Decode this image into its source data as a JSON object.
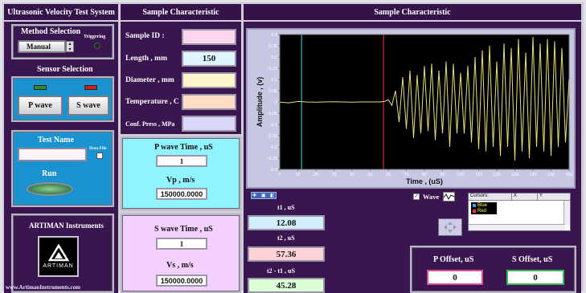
{
  "header": {
    "left_title": "Ultrasonic Velocity Test System",
    "middle_title": "Sample Characteristic",
    "right_title": "Sample Characteristic"
  },
  "method": {
    "title": "Method Selection",
    "value": "Manual",
    "triggering_label": "Triggering"
  },
  "sensor": {
    "title": "Sensor Selection",
    "p_label": "P wave",
    "s_label": "S wave",
    "p_led_color": "#2e8b2e",
    "s_led_color": "#d02020"
  },
  "test": {
    "title": "Test Name",
    "data_file_label": "Data File",
    "run_label": "Run",
    "name_value": ""
  },
  "brand": {
    "title": "ARTIMAN Instruments",
    "logo_text": "ARTIMAN",
    "url": "www.ArtimanInstruments.com"
  },
  "sample": {
    "id_label": "Sample ID :",
    "id_value": "",
    "length_label": "Length , mm",
    "length_value": "150",
    "diameter_label": "Diameter , mm",
    "diameter_value": "",
    "temp_label": "Temperature , C",
    "temp_value": "",
    "conf_label": "Conf. Press , MPa",
    "conf_value": ""
  },
  "pwave": {
    "time_label": "P wave Time , uS",
    "time_value": "1",
    "v_label": "Vp , m/s",
    "v_value": "150000.0000"
  },
  "swave": {
    "time_label": "S wave Time , uS",
    "time_value": "1",
    "v_label": "Vs , m/s",
    "v_value": "150000.0000"
  },
  "cursors": {
    "t1_label": "t1 ,  uS",
    "t1_value": "12.08",
    "t2_label": "t2 ,  uS",
    "t2_value": "57.36",
    "dt_label": "t2 - t1 ,  uS",
    "dt_value": "45.28",
    "wave_label": "Wave",
    "table_headers": [
      "Cursors:",
      "X",
      "Y"
    ],
    "rows": [
      {
        "name": "Blue",
        "color": "#3aa0ff"
      },
      {
        "name": "Red",
        "color": "#ff3030"
      }
    ]
  },
  "offsets": {
    "p_label": "P Offset,  uS",
    "p_value": "0",
    "s_label": "S Offset,  uS",
    "s_value": "0"
  },
  "chart_data": {
    "type": "line",
    "xlabel": "Time , (uS)",
    "ylabel": "Amplitude , (v)",
    "xlim": [
      0,
      160
    ],
    "ylim": [
      -0.3,
      0.3
    ],
    "x_ticks": [
      "0",
      "10",
      "20",
      "30",
      "40",
      "50",
      "60",
      "70",
      "80",
      "90",
      "100",
      "110",
      "120",
      "130",
      "140",
      "150",
      "160"
    ],
    "y_ticks": [
      "0.3",
      "0.25",
      "0.2",
      "0.15",
      "0.1",
      "0.05",
      "0",
      "-0.05",
      "-0.1",
      "-0.15",
      "-0.2",
      "-0.25",
      "-0.3"
    ],
    "series_color": "#e8e070",
    "cursor_blue_x": 12.08,
    "cursor_red_x": 57.36,
    "x": [
      0,
      5,
      10,
      15,
      20,
      25,
      30,
      35,
      40,
      45,
      50,
      55,
      58,
      60,
      62,
      64,
      66,
      68,
      70,
      72,
      74,
      76,
      78,
      80,
      82,
      84,
      86,
      88,
      90,
      92,
      94,
      96,
      98,
      100,
      102,
      104,
      106,
      108,
      110,
      112,
      114,
      116,
      118,
      120,
      122,
      124,
      126,
      128,
      130,
      132,
      134,
      136,
      138,
      140,
      142,
      144,
      146,
      148,
      150,
      152,
      154,
      156,
      158,
      160
    ],
    "y": [
      -0.001,
      -0.004,
      0.002,
      0.0,
      -0.001,
      0.0,
      0.001,
      0.0,
      -0.001,
      0.0,
      0.0,
      0.0,
      0.002,
      0.01,
      -0.015,
      0.05,
      -0.09,
      0.11,
      -0.12,
      0.14,
      -0.16,
      0.12,
      -0.14,
      0.16,
      -0.13,
      0.17,
      -0.17,
      0.14,
      -0.14,
      0.18,
      -0.2,
      0.17,
      -0.14,
      0.13,
      -0.14,
      0.16,
      -0.18,
      0.2,
      -0.21,
      0.23,
      -0.22,
      0.25,
      -0.2,
      0.18,
      -0.24,
      0.26,
      -0.2,
      0.24,
      -0.26,
      0.28,
      -0.22,
      0.22,
      -0.25,
      0.29,
      -0.2,
      0.26,
      -0.22,
      0.28,
      -0.24,
      0.27,
      -0.2,
      0.24,
      -0.18,
      0.1
    ]
  }
}
